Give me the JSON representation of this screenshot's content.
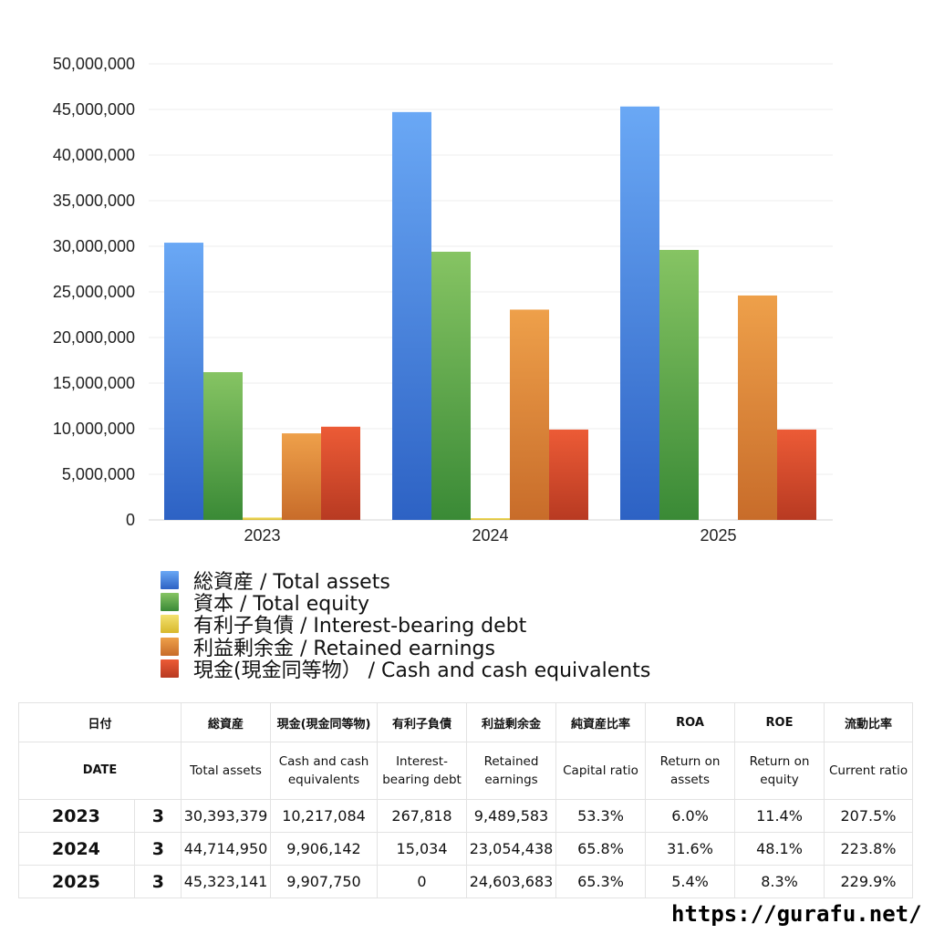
{
  "chart_data": {
    "type": "bar",
    "categories": [
      "2023",
      "2024",
      "2025"
    ],
    "series": [
      {
        "name": "総資産 / Total assets",
        "values": [
          30393379,
          44714950,
          45323141
        ],
        "color": "#4a8ee8",
        "color_light": "#6aa8f5",
        "color_dark": "#2d62c4"
      },
      {
        "name": "資本 / Total equity",
        "values": [
          16200000,
          29400000,
          29600000
        ],
        "color": "#5fae4c",
        "color_light": "#86c463",
        "color_dark": "#3a8a36"
      },
      {
        "name": "有利子負債 / Interest-bearing debt",
        "values": [
          267818,
          15034,
          0
        ],
        "color": "#e8d24a",
        "color_light": "#f3e270",
        "color_dark": "#d8b82c"
      },
      {
        "name": "利益剰余金 / Retained earnings",
        "values": [
          9489583,
          23054438,
          24603683
        ],
        "color": "#e08a3a",
        "color_light": "#eea04a",
        "color_dark": "#c86c2a"
      },
      {
        "name": "現金(現金同等物） /  Cash and cash equivalents",
        "values": [
          10217084,
          9906142,
          9907750
        ],
        "color": "#dc4f2e",
        "color_light": "#ec5b36",
        "color_dark": "#b83a22"
      }
    ],
    "y_ticks": [
      "0",
      "5,000,000",
      "10,000,000",
      "15,000,000",
      "20,000,000",
      "25,000,000",
      "30,000,000",
      "35,000,000",
      "40,000,000",
      "45,000,000",
      "50,000,000"
    ],
    "ylim": [
      0,
      50000000
    ],
    "grid": true,
    "legend_position": "bottom-left"
  },
  "table": {
    "header_ja": [
      "日付",
      "",
      "総資産",
      "現金(現金同等物)",
      "有利子負債",
      "利益剰余金",
      "純資産比率",
      "ROA",
      "ROE",
      "流動比率"
    ],
    "header_en": [
      "DATE",
      "",
      "Total assets",
      "Cash and cash equivalents",
      "Interest-bearing debt",
      "Retained earnings",
      "Capital ratio",
      "Return on assets",
      "Return on equity",
      "Current ratio"
    ],
    "rows": [
      [
        "2023",
        "3",
        "30,393,379",
        "10,217,084",
        "267,818",
        "9,489,583",
        "53.3%",
        "6.0%",
        "11.4%",
        "207.5%"
      ],
      [
        "2024",
        "3",
        "44,714,950",
        "9,906,142",
        "15,034",
        "23,054,438",
        "65.8%",
        "31.6%",
        "48.1%",
        "223.8%"
      ],
      [
        "2025",
        "3",
        "45,323,141",
        "9,907,750",
        "0",
        "24,603,683",
        "65.3%",
        "5.4%",
        "8.3%",
        "229.9%"
      ]
    ]
  },
  "footer": {
    "url": "https://gurafu.net/"
  }
}
